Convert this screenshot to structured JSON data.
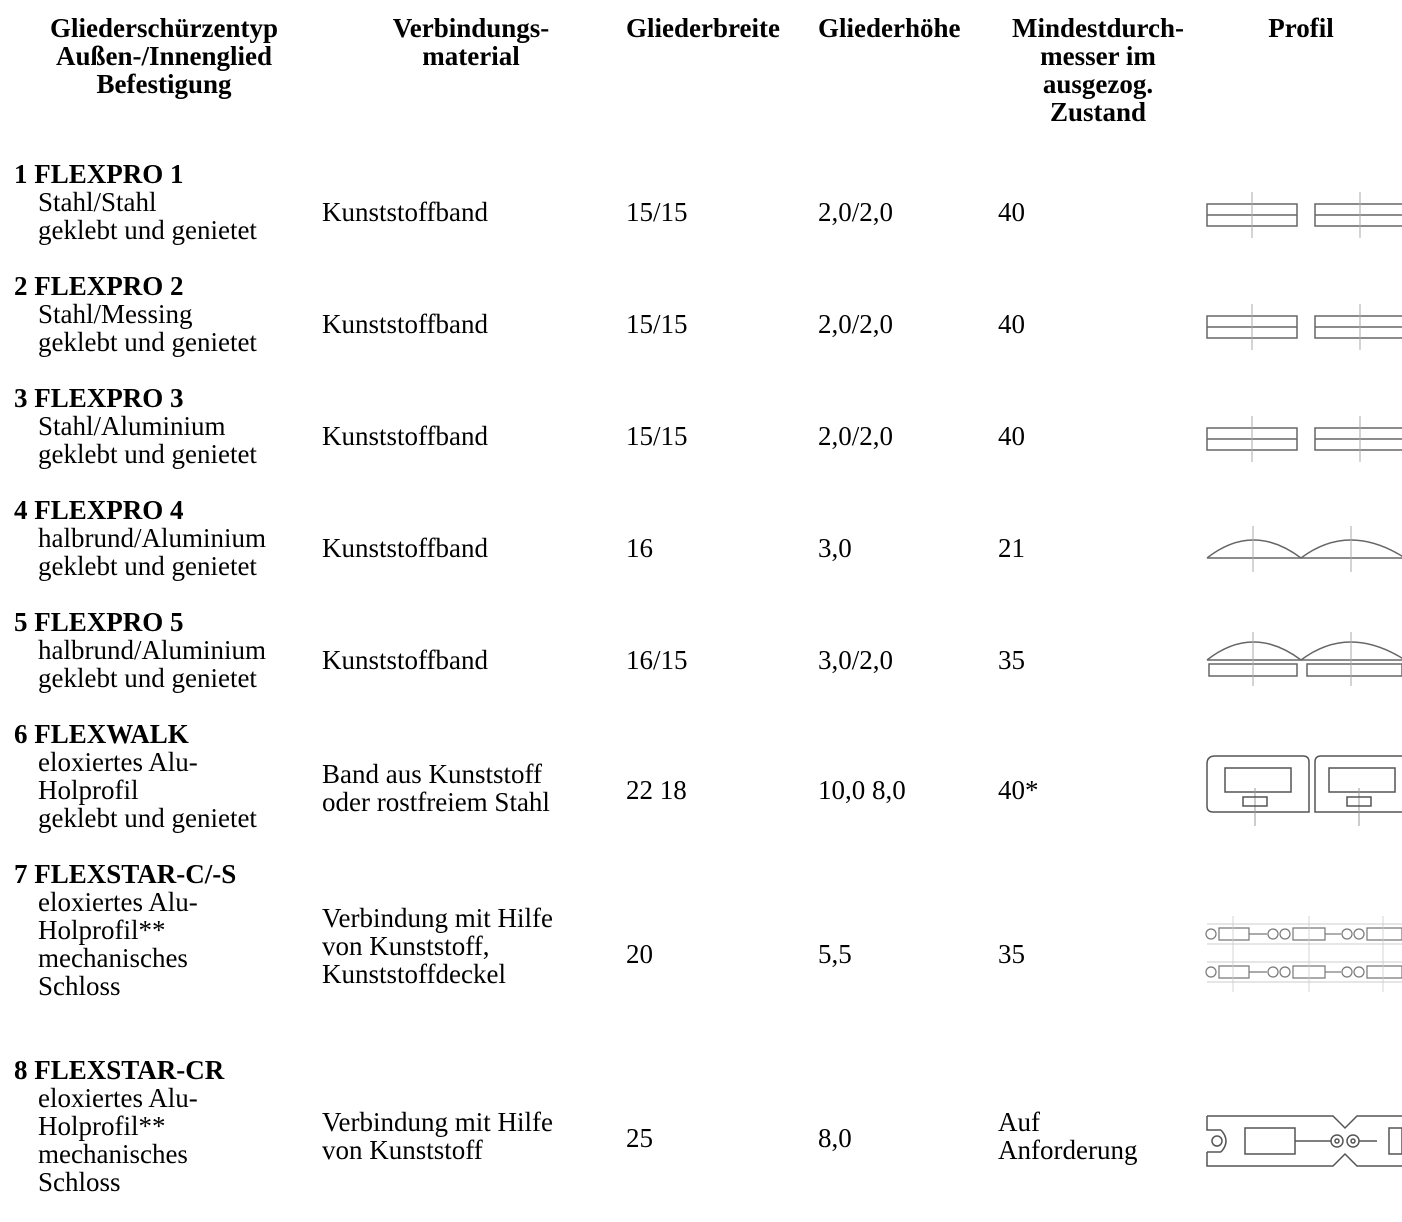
{
  "headers": {
    "col1": [
      "Gliederschürzentyp",
      "Außen-/Innenglied",
      "Befestigung"
    ],
    "col2": [
      "Verbindungs-",
      "material"
    ],
    "col3": [
      "Gliederbreite"
    ],
    "col4": [
      "Gliederhöhe"
    ],
    "col5": [
      "Mindestdurch-",
      "messer im",
      "ausgezog.",
      "Zustand"
    ],
    "col6": [
      "Profil"
    ]
  },
  "rows": [
    {
      "title": "1 FLEXPRO 1",
      "sub": [
        "Stahl/Stahl",
        "geklebt und genietet"
      ],
      "material": [
        "Kunststoffband"
      ],
      "breite": "15/15",
      "hoehe": "2,0/2,0",
      "durchmesser": [
        "40"
      ],
      "profil_icon": "flat-double-strip-profile-icon"
    },
    {
      "title": "2 FLEXPRO 2",
      "sub": [
        "Stahl/Messing",
        "geklebt und genietet"
      ],
      "material": [
        "Kunststoffband"
      ],
      "breite": "15/15",
      "hoehe": "2,0/2,0",
      "durchmesser": [
        "40"
      ],
      "profil_icon": "flat-double-strip-profile-icon"
    },
    {
      "title": "3 FLEXPRO 3",
      "sub": [
        "Stahl/Aluminium",
        "geklebt und genietet"
      ],
      "material": [
        "Kunststoffband"
      ],
      "breite": "15/15",
      "hoehe": "2,0/2,0",
      "durchmesser": [
        "40"
      ],
      "profil_icon": "flat-double-strip-profile-icon"
    },
    {
      "title": "4 FLEXPRO 4",
      "sub": [
        "halbrund/Aluminium",
        "geklebt und genietet"
      ],
      "material": [
        "Kunststoffband"
      ],
      "breite": "16",
      "hoehe": "3,0",
      "durchmesser": [
        "21"
      ],
      "profil_icon": "half-round-profile-icon"
    },
    {
      "title": "5 FLEXPRO 5",
      "sub": [
        "halbrund/Aluminium",
        "geklebt und genietet"
      ],
      "material": [
        "Kunststoffband"
      ],
      "breite": "16/15",
      "hoehe": "3,0/2,0",
      "durchmesser": [
        "35"
      ],
      "profil_icon": "half-round-on-strip-profile-icon"
    },
    {
      "title": "6 FLEXWALK",
      "sub": [
        "eloxiertes Alu-",
        "Holprofil",
        "geklebt und genietet"
      ],
      "material": [
        "Band aus Kunststoff",
        "oder rostfreiem Stahl"
      ],
      "breite": "22 18",
      "hoehe": "10,0 8,0",
      "durchmesser": [
        "40*"
      ],
      "profil_icon": "hollow-box-profile-icon"
    },
    {
      "title": "7 FLEXSTAR-C/-S",
      "sub": [
        "eloxiertes Alu-",
        "Holprofil**",
        "mechanisches",
        "Schloss"
      ],
      "material": [
        "Verbindung mit Hilfe",
        "von Kunststoff,",
        "Kunststoffdeckel"
      ],
      "breite": "20",
      "hoehe": "5,5",
      "durchmesser": [
        "35"
      ],
      "profil_icon": "chain-link-profile-icon"
    },
    {
      "title": "8 FLEXSTAR-CR",
      "sub": [
        "eloxiertes Alu-",
        "Holprofil**",
        "mechanisches",
        "Schloss"
      ],
      "material": [
        "Verbindung mit Hilfe",
        "von Kunststoff"
      ],
      "breite": "25",
      "hoehe": "8,0",
      "durchmesser": [
        "Auf",
        "Anforderung"
      ],
      "profil_icon": "chamfered-link-profile-icon"
    }
  ]
}
